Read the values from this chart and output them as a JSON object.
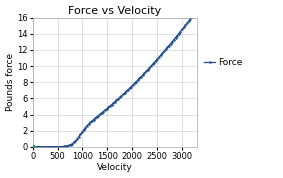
{
  "title": "Force vs Velocity",
  "xlabel": "Velocity",
  "ylabel": "Pounds force",
  "xlim": [
    0,
    3300
  ],
  "ylim": [
    0,
    16
  ],
  "xticks": [
    0,
    500,
    1000,
    1500,
    2000,
    2500,
    3000
  ],
  "yticks": [
    0,
    2,
    4,
    6,
    8,
    10,
    12,
    14,
    16
  ],
  "line_color": "#1f4e8c",
  "marker_color": "#00b050",
  "legend_label": "Force",
  "background_color": "#ffffff",
  "plot_bg_color": "#ffffff",
  "grid_color": "#c8c8c8",
  "title_fontsize": 8,
  "label_fontsize": 6.5,
  "tick_fontsize": 6,
  "legend_fontsize": 6.5,
  "v_threshold": 900,
  "v_max": 3000,
  "f_max": 14.5,
  "marker_v_end": 3300
}
